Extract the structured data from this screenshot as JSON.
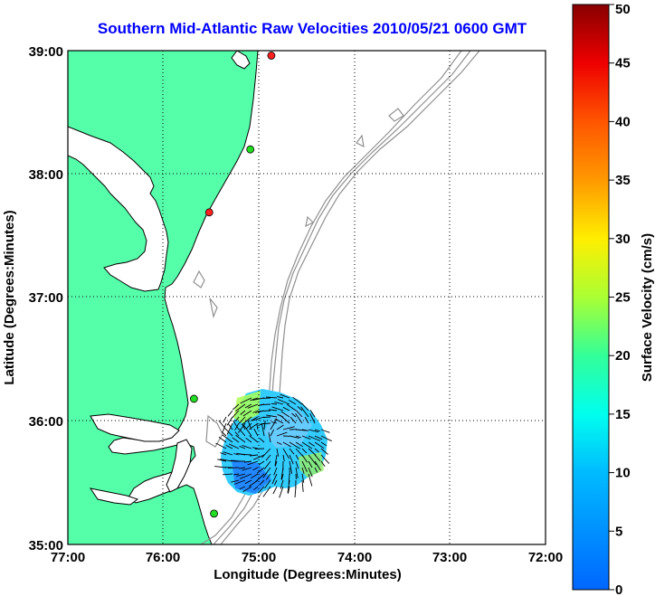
{
  "title": "Southern Mid-Atlantic Raw Velocities 2010/05/21 0600 GMT",
  "x_axis_label": "Longitude (Degrees:Minutes)",
  "y_axis_label": "Latitude (Degrees:Minutes)",
  "x_ticks": [
    "77:00",
    "76:00",
    "75:00",
    "74:00",
    "73:00",
    "72:00"
  ],
  "y_ticks": [
    "39:00",
    "38:00",
    "37:00",
    "36:00",
    "35:00"
  ],
  "colorbar": {
    "label": "Surface Velocity (cm/s)",
    "ticks": [
      "0",
      "5",
      "10",
      "15",
      "20",
      "25",
      "30",
      "35",
      "40",
      "45",
      "50"
    ],
    "min": 0,
    "max": 50
  },
  "colors": {
    "land": "#55ffaa",
    "water": "#ffffff",
    "title": "#0000ff",
    "bathymetry": "#909090"
  },
  "stations": [
    {
      "lon": -74.87,
      "lat": 38.96,
      "color": "#ff2020"
    },
    {
      "lon": -75.09,
      "lat": 38.2,
      "color": "#22dd22"
    },
    {
      "lon": -75.52,
      "lat": 37.69,
      "color": "#ff2020"
    },
    {
      "lon": -75.68,
      "lat": 36.18,
      "color": "#22dd22"
    },
    {
      "lon": -75.47,
      "lat": 35.25,
      "color": "#22dd22"
    }
  ]
}
